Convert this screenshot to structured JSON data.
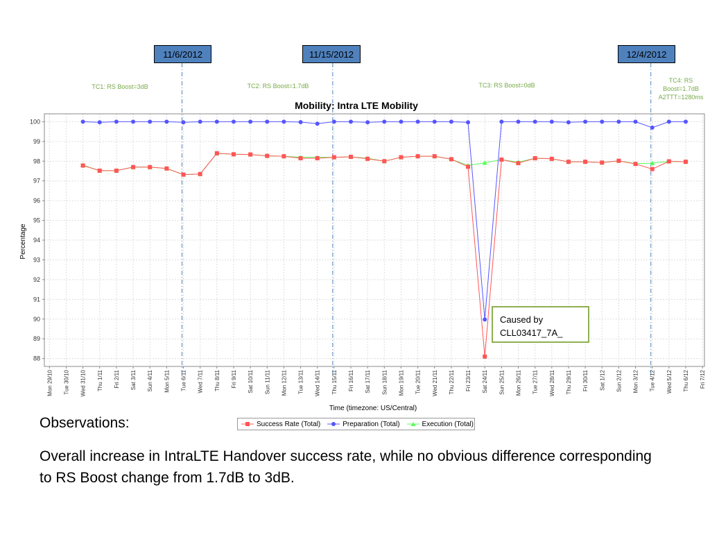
{
  "date_markers": [
    {
      "label": "11/6/2012",
      "index": 8
    },
    {
      "label": "11/15/2012",
      "index": 17
    },
    {
      "label": "12/4/2012",
      "index": 36
    }
  ],
  "tc_labels": [
    {
      "text": "TC1: RS Boost=3dB"
    },
    {
      "text": "TC2: RS Boost=1.7dB"
    },
    {
      "text": "TC3: RS Boost=0dB"
    },
    {
      "text": "TC4: RS Boost=1.7dB A2TTT=1280ms"
    }
  ],
  "annotation": {
    "line1": "Caused by",
    "line2": "CLL03417_7A_"
  },
  "observations": {
    "title": "Observations:",
    "text": "Overall increase in IntraLTE Handover success rate, while no obvious difference corresponding to RS Boost change from 1.7dB to 3dB."
  },
  "colors": {
    "success": "#ff5555",
    "preparation": "#5555ff",
    "execution": "#55ff55",
    "marker_line": "#4f81bd",
    "tc_text": "#76a947"
  },
  "chart_data": {
    "type": "line",
    "title": "Mobility: Intra LTE Mobility",
    "xlabel": "Time (timezone: US/Central)",
    "ylabel": "Percentage",
    "ylim": [
      87.6,
      100.4
    ],
    "yticks": [
      88,
      89,
      90,
      91,
      92,
      93,
      94,
      95,
      96,
      97,
      98,
      99,
      100
    ],
    "grid": true,
    "legend_position": "bottom",
    "categories": [
      "Mon 29/10",
      "Tue 30/10",
      "Wed 31/10",
      "Thu 1/11",
      "Fri 2/11",
      "Sat 3/11",
      "Sun 4/11",
      "Mon 5/11",
      "Tue 6/11",
      "Wed 7/11",
      "Thu 8/11",
      "Fri 9/11",
      "Sat 10/11",
      "Sun 11/11",
      "Mon 12/11",
      "Tue 13/11",
      "Wed 14/11",
      "Thu 15/11",
      "Fri 16/11",
      "Sat 17/11",
      "Sun 18/11",
      "Mon 19/11",
      "Tue 20/11",
      "Wed 21/11",
      "Thu 22/11",
      "Fri 23/11",
      "Sat 24/11",
      "Sun 25/11",
      "Mon 26/11",
      "Tue 27/11",
      "Wed 28/11",
      "Thu 29/11",
      "Fri 30/11",
      "Sat 1/12",
      "Sun 2/12",
      "Mon 3/12",
      "Tue 4/12",
      "Wed 5/12",
      "Thu 6/12",
      "Fri 7/12"
    ],
    "series": [
      {
        "name": "Success Rate (Total)",
        "marker": "square",
        "values": [
          null,
          null,
          97.78,
          97.52,
          97.52,
          97.7,
          97.7,
          97.63,
          97.32,
          97.35,
          98.4,
          98.35,
          98.34,
          98.27,
          98.25,
          98.15,
          98.15,
          98.2,
          98.22,
          98.12,
          98.0,
          98.2,
          98.25,
          98.25,
          98.1,
          97.72,
          88.1,
          98.08,
          97.9,
          98.15,
          98.12,
          97.97,
          97.97,
          97.93,
          98.02,
          97.86,
          97.6,
          97.99,
          97.97,
          null
        ]
      },
      {
        "name": "Preparation (Total)",
        "marker": "circle",
        "values": [
          null,
          null,
          100.0,
          99.97,
          100.0,
          100.0,
          100.0,
          100.0,
          99.97,
          100.0,
          100.0,
          100.0,
          100.0,
          100.0,
          100.0,
          99.98,
          99.9,
          100.0,
          100.0,
          99.97,
          100.0,
          100.0,
          100.0,
          100.0,
          100.0,
          99.97,
          89.98,
          100.0,
          100.0,
          100.0,
          100.0,
          99.97,
          100.0,
          100.0,
          100.0,
          100.0,
          99.7,
          100.0,
          100.0,
          null
        ]
      },
      {
        "name": "Execution (Total)",
        "marker": "triangle",
        "values": [
          null,
          null,
          97.8,
          97.52,
          97.52,
          97.7,
          97.7,
          97.63,
          97.32,
          97.35,
          98.4,
          98.35,
          98.34,
          98.27,
          98.25,
          98.2,
          98.2,
          98.2,
          98.22,
          98.15,
          98.0,
          98.2,
          98.25,
          98.25,
          98.1,
          97.78,
          97.92,
          98.08,
          97.95,
          98.15,
          98.12,
          97.97,
          97.97,
          97.93,
          98.02,
          97.88,
          97.9,
          97.99,
          97.97,
          null
        ]
      }
    ]
  }
}
